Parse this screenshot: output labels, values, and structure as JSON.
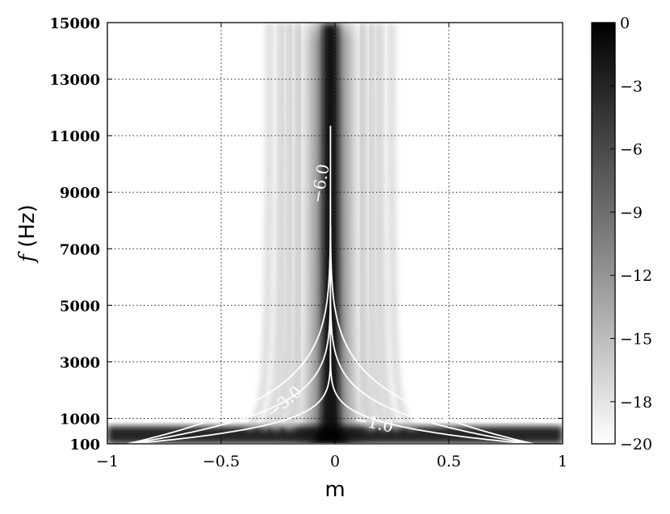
{
  "chart_data": {
    "type": "heatmap",
    "title": "",
    "xlabel": "m",
    "ylabel_italic": "f",
    "ylabel_rest": " (Hz)",
    "xlim": [
      -1,
      1
    ],
    "ylim": [
      100,
      15000
    ],
    "grid": true,
    "colormap": "gray",
    "colorbar_range": [
      -20,
      0
    ],
    "x_ticks": [
      {
        "value": -1,
        "label": "−1"
      },
      {
        "value": -0.5,
        "label": "−0.5"
      },
      {
        "value": 0,
        "label": "0"
      },
      {
        "value": 0.5,
        "label": "0.5"
      },
      {
        "value": 1,
        "label": "1"
      }
    ],
    "y_ticks": [
      {
        "value": 100,
        "label": "100"
      },
      {
        "value": 1000,
        "label": "1000"
      },
      {
        "value": 3000,
        "label": "3000"
      },
      {
        "value": 5000,
        "label": "5000"
      },
      {
        "value": 7000,
        "label": "7000"
      },
      {
        "value": 9000,
        "label": "9000"
      },
      {
        "value": 11000,
        "label": "11000"
      },
      {
        "value": 13000,
        "label": "13000"
      },
      {
        "value": 15000,
        "label": "15000"
      }
    ],
    "colorbar_ticks": [
      {
        "value": 0,
        "label": "0"
      },
      {
        "value": -3,
        "label": "−3"
      },
      {
        "value": -6,
        "label": "−6"
      },
      {
        "value": -9,
        "label": "−9"
      },
      {
        "value": -12,
        "label": "−12"
      },
      {
        "value": -15,
        "label": "−15"
      },
      {
        "value": -18,
        "label": "−18"
      },
      {
        "value": -20,
        "label": "−20"
      }
    ],
    "contours": [
      {
        "level": -1.0,
        "label": "−1.0",
        "peak_f": 4450,
        "center_m": -0.02
      },
      {
        "level": -3.0,
        "label": "−3.0",
        "peak_f": 7800,
        "center_m": -0.02
      },
      {
        "level": -6.0,
        "label": "−6.0",
        "peak_f": 11350,
        "center_m": -0.02
      }
    ],
    "contour_label_positions": [
      {
        "label": "−1.0",
        "m": 0.17,
        "f": 800,
        "angle": 12
      },
      {
        "label": "−3.0",
        "m": -0.22,
        "f": 1550,
        "angle": -40
      },
      {
        "label": "−6.0",
        "m": -0.06,
        "f": 9300,
        "angle": -80
      }
    ],
    "colors": {
      "contour": "#ffffff",
      "background": "#ffffff",
      "text": "#000000"
    }
  }
}
